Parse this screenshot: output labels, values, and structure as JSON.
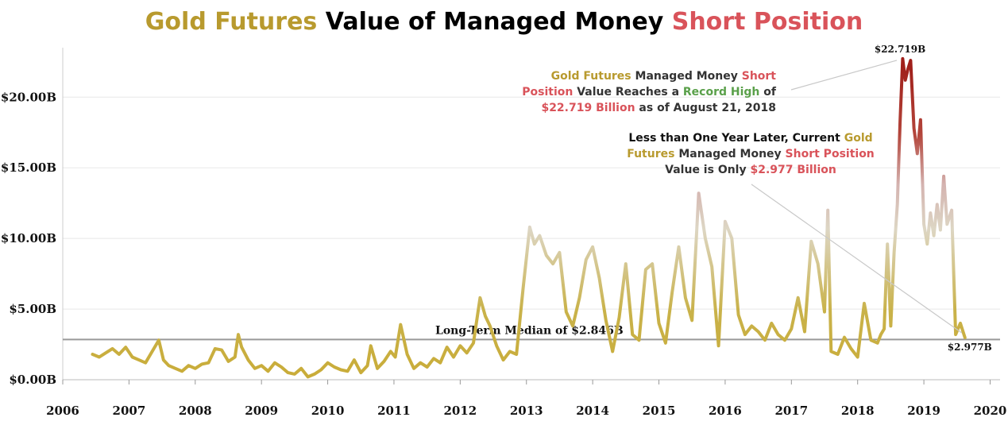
{
  "chart_data": {
    "type": "line",
    "title_parts": [
      {
        "text": "Gold Futures",
        "color": "#b89a2e"
      },
      {
        "text": " Value of Managed Money ",
        "color": "#000000"
      },
      {
        "text": "Short Position",
        "color": "#d9535a"
      }
    ],
    "xlabel": "",
    "ylabel": "",
    "x_ticks": [
      "2006",
      "2007",
      "2008",
      "2009",
      "2010",
      "2011",
      "2012",
      "2013",
      "2014",
      "2015",
      "2016",
      "2017",
      "2018",
      "2019",
      "2020"
    ],
    "y_ticks": [
      "$0.00B",
      "$5.00B",
      "$10.00B",
      "$15.00B",
      "$20.00B"
    ],
    "y_tick_values": [
      0,
      5,
      10,
      15,
      20
    ],
    "xlim": [
      2006.0,
      2020.15
    ],
    "ylim": [
      0,
      23.5
    ],
    "grid": true,
    "median": {
      "value": 2.846,
      "label": "Long-Term Median of $2.846B"
    },
    "peak": {
      "x": 2018.64,
      "value": 22.719,
      "label": "$22.719B"
    },
    "last": {
      "x": 2019.62,
      "value": 2.977,
      "label": "$2.977B"
    },
    "annotation_record": [
      [
        {
          "text": "Gold Futures",
          "color": "#b89a2e"
        },
        {
          "text": " Managed Money ",
          "color": "#333333"
        },
        {
          "text": "Short",
          "color": "#d9535a"
        }
      ],
      [
        {
          "text": "Position",
          "color": "#d9535a"
        },
        {
          "text": " Value Reaches a ",
          "color": "#333333"
        },
        {
          "text": "Record High",
          "color": "#5aa04a"
        },
        {
          "text": " of",
          "color": "#333333"
        }
      ],
      [
        {
          "text": "$22.719 Billion",
          "color": "#d9535a"
        },
        {
          "text": " as of August 21, 2018",
          "color": "#333333"
        }
      ]
    ],
    "annotation_current": [
      [
        {
          "text": "Less than One Year Later, Current ",
          "color": "#111111"
        },
        {
          "text": "Gold",
          "color": "#b89a2e"
        }
      ],
      [
        {
          "text": "Futures",
          "color": "#b89a2e"
        },
        {
          "text": " Managed Money ",
          "color": "#333333"
        },
        {
          "text": "Short Position",
          "color": "#d9535a"
        }
      ],
      [
        {
          "text": "Value is Only ",
          "color": "#333333"
        },
        {
          "text": "$2.977 Billion",
          "color": "#d9535a"
        }
      ]
    ],
    "colors": {
      "low": "#c9ac38",
      "mid": "#d9d2c0",
      "high": "#a92a22",
      "median_line": "#999999",
      "grid": "#e8e8e8"
    },
    "series": [
      {
        "x": [
          2006.45,
          2006.55,
          2006.65,
          2006.75,
          2006.85,
          2006.95,
          2007.05,
          2007.15,
          2007.25,
          2007.35,
          2007.45,
          2007.52,
          2007.6,
          2007.7,
          2007.8,
          2007.9,
          2008.0,
          2008.1,
          2008.2,
          2008.3,
          2008.4,
          2008.5,
          2008.6,
          2008.65,
          2008.7,
          2008.8,
          2008.9,
          2009.0,
          2009.1,
          2009.2,
          2009.3,
          2009.4,
          2009.5,
          2009.6,
          2009.7,
          2009.8,
          2009.9,
          2010.0,
          2010.1,
          2010.2,
          2010.3,
          2010.4,
          2010.5,
          2010.6,
          2010.65,
          2010.75,
          2010.85,
          2010.95,
          2011.02,
          2011.1,
          2011.2,
          2011.3,
          2011.4,
          2011.5,
          2011.6,
          2011.7,
          2011.8,
          2011.9,
          2012.0,
          2012.1,
          2012.2,
          2012.3,
          2012.38,
          2012.45,
          2012.55,
          2012.65,
          2012.75,
          2012.85,
          2012.95,
          2013.05,
          2013.12,
          2013.2,
          2013.3,
          2013.4,
          2013.5,
          2013.6,
          2013.7,
          2013.8,
          2013.9,
          2014.0,
          2014.1,
          2014.2,
          2014.3,
          2014.4,
          2014.5,
          2014.6,
          2014.7,
          2014.8,
          2014.9,
          2015.0,
          2015.1,
          2015.2,
          2015.3,
          2015.4,
          2015.5,
          2015.6,
          2015.7,
          2015.8,
          2015.9,
          2016.0,
          2016.1,
          2016.2,
          2016.3,
          2016.4,
          2016.5,
          2016.6,
          2016.7,
          2016.8,
          2016.9,
          2017.0,
          2017.1,
          2017.2,
          2017.3,
          2017.4,
          2017.5,
          2017.55,
          2017.6,
          2017.7,
          2017.8,
          2017.9,
          2018.0,
          2018.1,
          2018.2,
          2018.3,
          2018.35,
          2018.4,
          2018.45,
          2018.5,
          2018.55,
          2018.6,
          2018.64,
          2018.68,
          2018.72,
          2018.76,
          2018.8,
          2018.85,
          2018.9,
          2018.95,
          2019.0,
          2019.05,
          2019.1,
          2019.15,
          2019.2,
          2019.25,
          2019.3,
          2019.35,
          2019.42,
          2019.48,
          2019.55,
          2019.62
        ],
        "values": [
          1.8,
          1.6,
          1.9,
          2.2,
          1.8,
          2.3,
          1.6,
          1.4,
          1.2,
          2.0,
          2.8,
          1.4,
          1.0,
          0.8,
          0.6,
          1.0,
          0.8,
          1.1,
          1.2,
          2.2,
          2.1,
          1.3,
          1.6,
          3.2,
          2.3,
          1.4,
          0.8,
          1.0,
          0.6,
          1.2,
          0.9,
          0.5,
          0.4,
          0.8,
          0.2,
          0.4,
          0.7,
          1.2,
          0.9,
          0.7,
          0.6,
          1.4,
          0.5,
          1.0,
          2.4,
          0.8,
          1.3,
          2.0,
          1.6,
          3.9,
          1.8,
          0.8,
          1.2,
          0.9,
          1.5,
          1.2,
          2.3,
          1.6,
          2.4,
          1.9,
          2.6,
          5.8,
          4.5,
          3.8,
          2.4,
          1.4,
          2.0,
          1.8,
          6.5,
          10.8,
          9.6,
          10.2,
          8.8,
          8.2,
          9.0,
          4.8,
          3.8,
          5.8,
          8.5,
          9.4,
          7.2,
          4.2,
          2.0,
          4.4,
          8.2,
          3.2,
          2.8,
          7.8,
          8.2,
          4.0,
          2.6,
          6.2,
          9.4,
          5.8,
          4.2,
          13.2,
          10.0,
          8.0,
          2.4,
          11.2,
          10.0,
          4.6,
          3.2,
          3.8,
          3.4,
          2.8,
          4.0,
          3.2,
          2.8,
          3.6,
          5.8,
          3.4,
          9.8,
          8.2,
          4.8,
          12.0,
          2.0,
          1.8,
          3.0,
          2.2,
          1.6,
          5.4,
          2.8,
          2.6,
          3.2,
          3.6,
          9.6,
          3.8,
          9.0,
          12.4,
          18.2,
          22.719,
          21.2,
          22.0,
          22.6,
          17.8,
          16.0,
          18.4,
          11.0,
          9.6,
          11.8,
          10.2,
          12.4,
          10.6,
          14.4,
          11.0,
          12.0,
          3.2,
          4.0,
          2.977
        ]
      }
    ]
  }
}
